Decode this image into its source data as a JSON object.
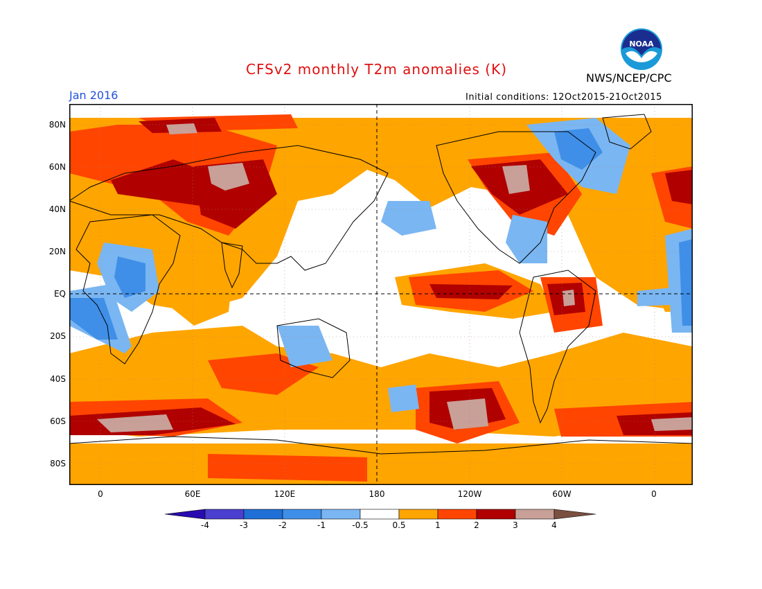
{
  "header": {
    "title": "CFSv2 monthly T2m anomalies (K)",
    "agency": "NWS/NCEP/CPC",
    "valid_month": "Jan 2016",
    "initial_conditions": "Initial conditions: 12Oct2015-21Oct2015",
    "logo_text": "NOAA"
  },
  "map": {
    "projection": "cylindrical equidistant, centered on 180",
    "lat_labels": [
      "80N",
      "60N",
      "40N",
      "20N",
      "EQ",
      "20S",
      "40S",
      "60S",
      "80S"
    ],
    "lon_labels": [
      "0",
      "60E",
      "120E",
      "180",
      "120W",
      "60W",
      "0"
    ],
    "reference_lines": [
      "equator",
      "180 meridian"
    ],
    "gridlines": "dotted every 20 degrees"
  },
  "legend": {
    "tick_labels": [
      "-4",
      "-3",
      "-2",
      "-1",
      "-0.5",
      "0.5",
      "1",
      "2",
      "3",
      "4"
    ],
    "colors": [
      "#2a0bb0",
      "#4a3fcf",
      "#1f6fd6",
      "#3f8fe8",
      "#7ab6f2",
      "#ffffff",
      "#ffa500",
      "#ff4500",
      "#b00000",
      "#c8a098",
      "#7a5040"
    ]
  }
}
